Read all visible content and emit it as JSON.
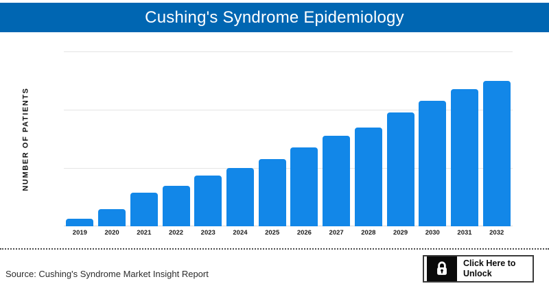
{
  "header": {
    "title": "Cushing's Syndrome Epidemiology",
    "background_color": "#0066b2",
    "text_color": "#ffffff"
  },
  "chart_data": {
    "type": "bar",
    "title": "Cushing's Syndrome Epidemiology",
    "ylabel": "NUMBER OF PATIENTS",
    "xlabel": "",
    "categories": [
      "2019",
      "2020",
      "2021",
      "2022",
      "2023",
      "2024",
      "2025",
      "2026",
      "2027",
      "2028",
      "2029",
      "2030",
      "2031",
      "2032"
    ],
    "values": [
      5,
      12,
      23,
      28,
      35,
      40,
      46,
      54,
      62,
      68,
      78,
      86,
      94,
      100
    ],
    "value_note": "relative scale estimated from bar heights; no numeric tick labels shown on axis",
    "ylim": [
      0,
      120
    ],
    "gridline_values": [
      40,
      80,
      120
    ],
    "grid": "horizontal only",
    "legend": "none",
    "bar_color": "#1287e8",
    "gridline_color": "#e4e4e4"
  },
  "footer": {
    "source": "Source: Cushing's Syndrome Market Insight Report",
    "unlock_button": {
      "label_line1": "Click Here to",
      "label_line2": "Unlock",
      "icon": "lock-icon"
    }
  }
}
